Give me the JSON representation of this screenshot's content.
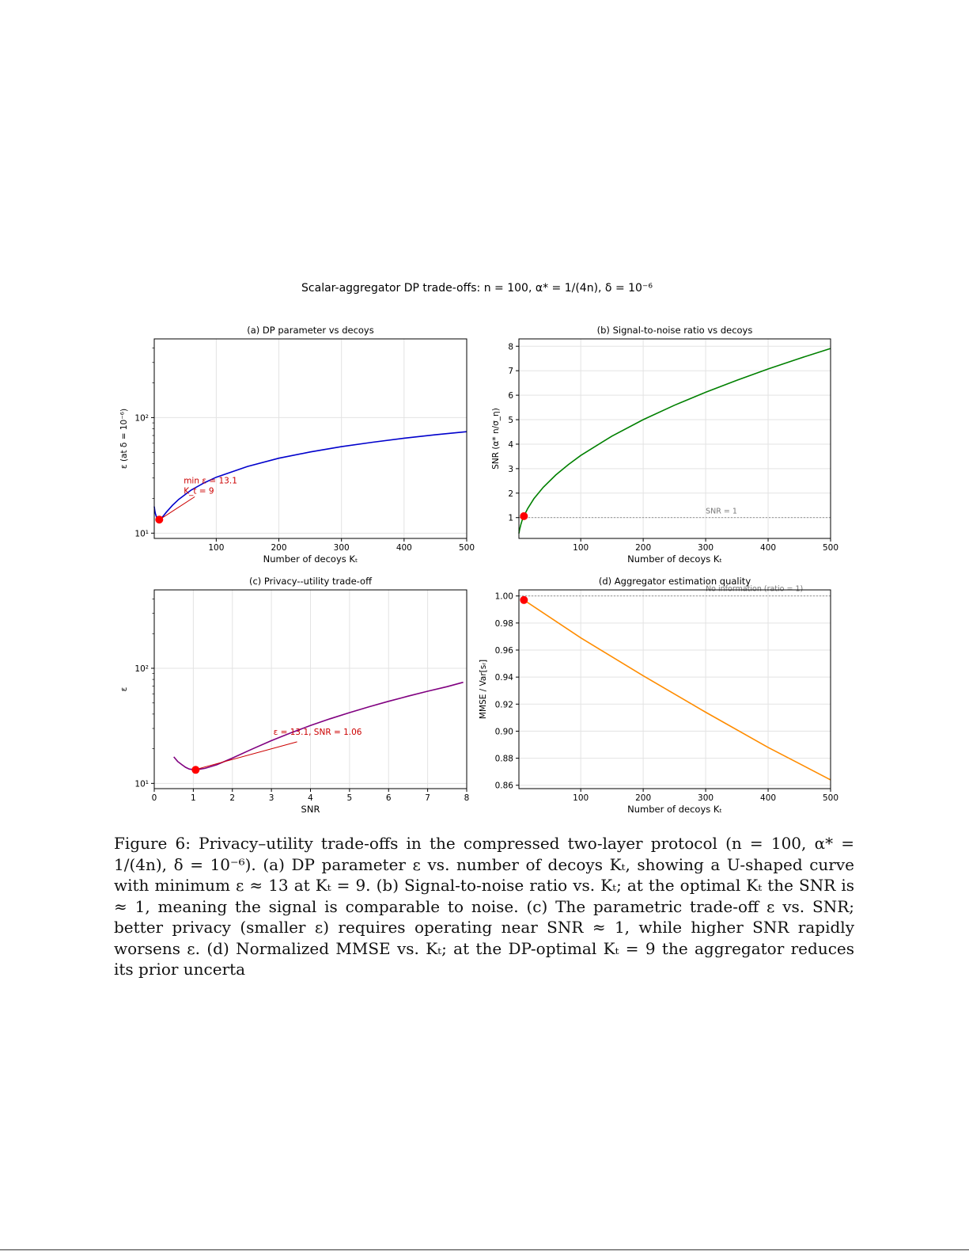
{
  "figure": {
    "suptitle": "Scalar-aggregator DP trade-offs: n = 100, α* = 1/(4n), δ = 10⁻⁶"
  },
  "chart_data": [
    {
      "id": "a",
      "type": "line",
      "title": "(a) DP parameter vs decoys",
      "xlabel": "Number of decoys K_t",
      "ylabel": "ε (at δ = 10⁻⁶)",
      "yscale": "log",
      "xlim": [
        1,
        500
      ],
      "ylim": [
        9,
        480
      ],
      "xticks": [
        100,
        200,
        300,
        400,
        500
      ],
      "yticks": [
        {
          "value": 10,
          "label": "10¹"
        },
        {
          "value": 100,
          "label": "10²"
        }
      ],
      "grid": true,
      "series": [
        {
          "color": "#0000cc",
          "x": [
            1,
            2,
            3,
            5,
            7,
            9,
            12,
            16,
            20,
            30,
            40,
            60,
            80,
            100,
            150,
            200,
            250,
            300,
            350,
            400,
            450,
            500
          ],
          "y": [
            17,
            15.5,
            14.6,
            13.6,
            13.2,
            13.1,
            13.4,
            14.2,
            15.1,
            17.4,
            19.6,
            23.6,
            27.1,
            30.5,
            37.8,
            44.5,
            50.4,
            56,
            61.2,
            66.3,
            71,
            75.5
          ]
        }
      ],
      "marker": {
        "x": 9,
        "y": 13.1,
        "color": "#ff0000"
      },
      "annotation": {
        "lines": [
          "min ε = 13.1",
          "K_t = 9"
        ],
        "color": "#cc0000",
        "text_at": [
          48,
          27
        ]
      }
    },
    {
      "id": "b",
      "type": "line",
      "title": "(b) Signal-to-noise ratio vs decoys",
      "xlabel": "Number of decoys K_t",
      "ylabel": "SNR (α* n/σ_η)",
      "xlim": [
        1,
        500
      ],
      "ylim": [
        0.15,
        8.3
      ],
      "xticks": [
        100,
        200,
        300,
        400,
        500
      ],
      "yticks": [
        1,
        2,
        3,
        4,
        5,
        6,
        7,
        8
      ],
      "grid": true,
      "series": [
        {
          "color": "#008000",
          "x": [
            1,
            2,
            4,
            6,
            9,
            15,
            25,
            40,
            60,
            80,
            100,
            150,
            200,
            250,
            300,
            350,
            400,
            450,
            500
          ],
          "y": [
            0.35,
            0.5,
            0.71,
            0.87,
            1.06,
            1.37,
            1.77,
            2.24,
            2.74,
            3.16,
            3.54,
            4.33,
            5.0,
            5.59,
            6.12,
            6.61,
            7.07,
            7.5,
            7.91
          ]
        }
      ],
      "marker": {
        "x": 9,
        "y": 1.06,
        "color": "#ff0000"
      },
      "reference": {
        "y": 1,
        "label": "SNR = 1"
      }
    },
    {
      "id": "c",
      "type": "line",
      "title": "(c) Privacy--utility trade-off",
      "xlabel": "SNR",
      "ylabel": "ε",
      "yscale": "log",
      "xlim": [
        0,
        8
      ],
      "ylim": [
        9,
        480
      ],
      "xticks": [
        0,
        1,
        2,
        3,
        4,
        5,
        6,
        7,
        8
      ],
      "yticks": [
        {
          "value": 10,
          "label": "10¹"
        },
        {
          "value": 100,
          "label": "10²"
        }
      ],
      "grid": true,
      "series": [
        {
          "color": "#800080",
          "x": [
            0.5,
            0.6,
            0.7,
            0.8,
            0.9,
            1.06,
            1.3,
            1.6,
            2.0,
            2.5,
            3.0,
            3.5,
            4.0,
            4.5,
            5.0,
            5.5,
            6.0,
            6.5,
            7.0,
            7.5,
            7.91
          ],
          "y": [
            17,
            15.5,
            14.6,
            13.8,
            13.3,
            13.1,
            13.5,
            14.5,
            16.6,
            19.8,
            23.5,
            27.5,
            31.8,
            36.4,
            41.2,
            46.3,
            51.7,
            57.3,
            63.2,
            69.2,
            75.5
          ]
        }
      ],
      "marker": {
        "x": 1.06,
        "y": 13.1,
        "color": "#ff0000"
      },
      "annotation": {
        "lines": [
          "ε = 13.1, SNR = 1.06"
        ],
        "color": "#cc0000",
        "text_at": [
          3.05,
          26.5
        ]
      }
    },
    {
      "id": "d",
      "type": "line",
      "title": "(d) Aggregator estimation quality",
      "xlabel": "Number of decoys K_t",
      "ylabel": "MMSE / Var[s_r]",
      "xlim": [
        1,
        500
      ],
      "ylim": [
        0.8575,
        1.0045
      ],
      "xticks": [
        100,
        200,
        300,
        400,
        500
      ],
      "yticks": [
        0.86,
        0.88,
        0.9,
        0.92,
        0.94,
        0.96,
        0.98,
        1.0
      ],
      "grid": true,
      "series": [
        {
          "color": "#ff8c00",
          "x": [
            9,
            100,
            200,
            300,
            400,
            500
          ],
          "y": [
            0.997,
            0.969,
            0.941,
            0.914,
            0.888,
            0.864
          ]
        }
      ],
      "marker": {
        "x": 9,
        "y": 0.997,
        "color": "#ff0000"
      },
      "reference": {
        "y": 1.0,
        "label": "No information (ratio = 1)"
      }
    }
  ],
  "caption": "Figure 6: Privacy–utility trade-offs in the compressed two-layer protocol (n = 100, α* = 1/(4n), δ = 10⁻⁶). (a) DP parameter ε vs. number of decoys Kₜ, showing a U-shaped curve with minimum ε ≈ 13 at Kₜ = 9. (b) Signal-to-noise ratio vs. Kₜ; at the optimal Kₜ the SNR is ≈ 1, meaning the signal is comparable to noise. (c) The parametric trade-off ε vs. SNR; better privacy (smaller ε) requires operating near SNR ≈ 1, while higher SNR rapidly worsens ε. (d) Normalized MMSE vs. Kₜ; at the DP-optimal Kₜ = 9 the aggregator reduces its prior uncerta"
}
